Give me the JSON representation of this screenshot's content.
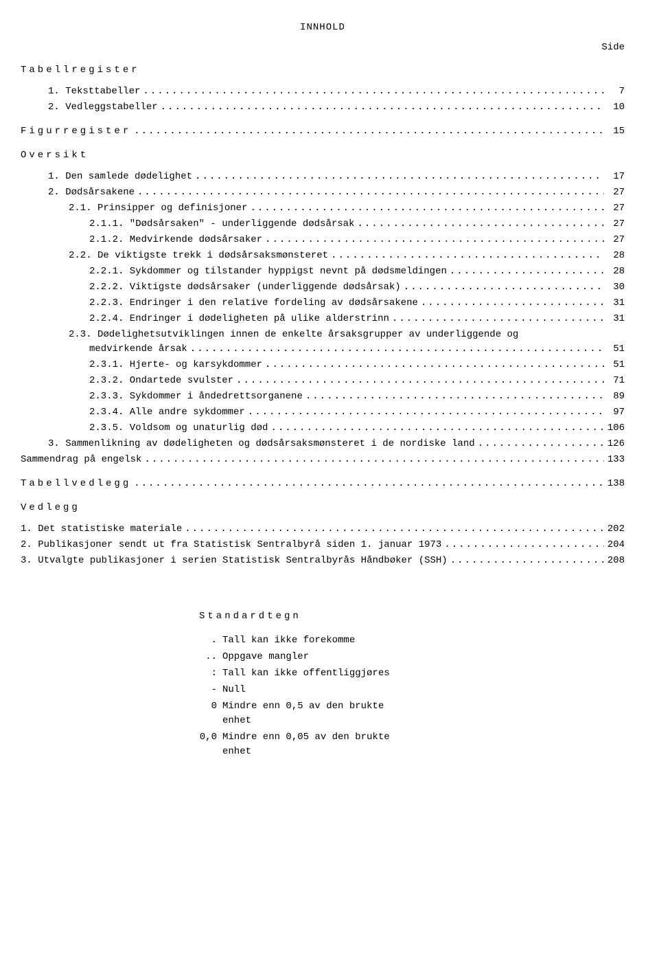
{
  "title": "INNHOLD",
  "side_label": "Side",
  "sections": {
    "tabellregister": "Tabellregister",
    "figurregister": "Figurregister",
    "oversikt": "Oversikt",
    "tabellvedlegg": "Tabellvedlegg",
    "vedlegg": "Vedlegg",
    "sammendrag": "Sammendrag på engelsk"
  },
  "toc": {
    "tr1": {
      "label": "1. Teksttabeller",
      "page": "7"
    },
    "tr2": {
      "label": "2. Vedleggstabeller",
      "page": "10"
    },
    "fig": {
      "page": "15"
    },
    "ov1": {
      "label": "1. Den samlede dødelighet",
      "page": "17"
    },
    "ov2": {
      "label": "2. Dødsårsakene",
      "page": "27"
    },
    "ov21": {
      "label": "2.1. Prinsipper og definisjoner",
      "page": "27"
    },
    "ov211": {
      "label": "2.1.1. \"Dødsårsaken\" - underliggende dødsårsak",
      "page": "27"
    },
    "ov212": {
      "label": "2.1.2. Medvirkende dødsårsaker",
      "page": "27"
    },
    "ov22": {
      "label": "2.2. De viktigste trekk i dødsårsaksmønsteret",
      "page": "28"
    },
    "ov221": {
      "label": "2.2.1. Sykdommer og tilstander hyppigst nevnt på dødsmeldingen",
      "page": "28"
    },
    "ov222": {
      "label": "2.2.2. Viktigste dødsårsaker (underliggende dødsårsak)",
      "page": "30"
    },
    "ov223": {
      "label": "2.2.3. Endringer i den relative fordeling av dødsårsakene",
      "page": "31"
    },
    "ov224": {
      "label": "2.2.4. Endringer i dødeligheten på ulike alderstrinn",
      "page": "31"
    },
    "ov23a": {
      "label": "2.3. Dødelighetsutviklingen innen de enkelte årsaksgrupper av underliggende og"
    },
    "ov23b": {
      "label": "medvirkende årsak",
      "page": "51"
    },
    "ov231": {
      "label": "2.3.1. Hjerte- og karsykdommer",
      "page": "51"
    },
    "ov232": {
      "label": "2.3.2. Ondartede svulster",
      "page": "71"
    },
    "ov233": {
      "label": "2.3.3. Sykdommer i åndedrettsorganene",
      "page": "89"
    },
    "ov234": {
      "label": "2.3.4. Alle andre sykdommer",
      "page": "97"
    },
    "ov235": {
      "label": "2.3.5. Voldsom og unaturlig død",
      "page": "106"
    },
    "ov3": {
      "label": "3. Sammenlikning av dødeligheten og dødsårsaksmønsteret i de nordiske land",
      "page": "126"
    },
    "samm": {
      "page": "133"
    },
    "tved": {
      "page": "138"
    },
    "ved1": {
      "label": "1. Det statistiske materiale",
      "page": "202"
    },
    "ved2": {
      "label": "2. Publikasjoner sendt ut fra Statistisk Sentralbyrå siden 1. januar 1973",
      "page": "204"
    },
    "ved3": {
      "label": "3. Utvalgte publikasjoner i serien Statistisk Sentralbyrås Håndbøker (SSH)",
      "page": "208"
    }
  },
  "standardtegn": {
    "title": "Standardtegn",
    "r1": {
      "sym": ".",
      "text": "Tall kan ikke forekomme"
    },
    "r2": {
      "sym": "..",
      "text": "Oppgave mangler"
    },
    "r3": {
      "sym": ":",
      "text": "Tall kan ikke offentliggjøres"
    },
    "r4": {
      "sym": "-",
      "text": "Null"
    },
    "r5": {
      "sym": "0",
      "text": "Mindre enn 0,5 av den brukte enhet"
    },
    "r6": {
      "sym": "0,0",
      "text": "Mindre enn 0,05 av den brukte enhet"
    }
  },
  "leader": "........................................................................................................................................................................................"
}
